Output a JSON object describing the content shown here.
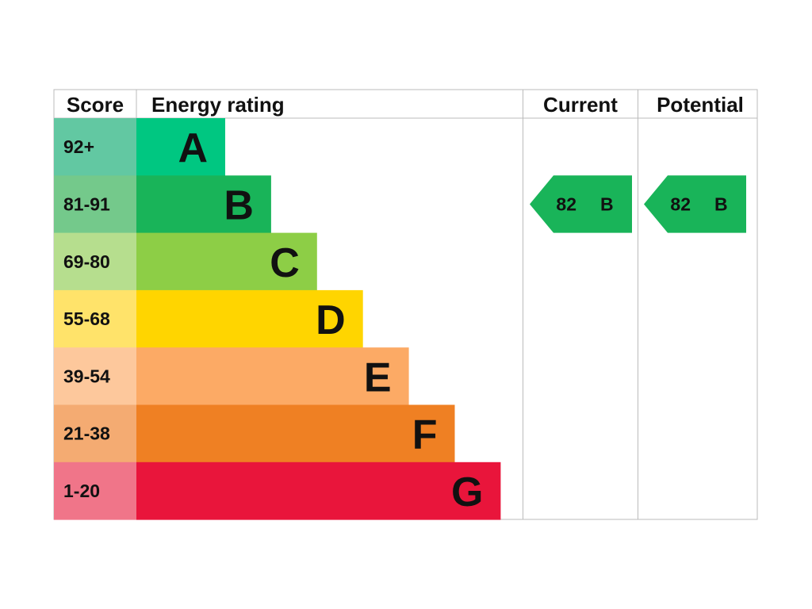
{
  "headers": {
    "score": "Score",
    "rating": "Energy rating",
    "current": "Current",
    "potential": "Potential"
  },
  "bands": [
    {
      "score": "92+",
      "letter": "A",
      "color": "#00c781",
      "score_color": "#62c8a2"
    },
    {
      "score": "81-91",
      "letter": "B",
      "color": "#19b459",
      "score_color": "#74c98b"
    },
    {
      "score": "69-80",
      "letter": "C",
      "color": "#8dce46",
      "score_color": "#b6de8e"
    },
    {
      "score": "55-68",
      "letter": "D",
      "color": "#ffd500",
      "score_color": "#ffe36a"
    },
    {
      "score": "39-54",
      "letter": "E",
      "color": "#fcaa65",
      "score_color": "#fdc89c"
    },
    {
      "score": "21-38",
      "letter": "F",
      "color": "#ef8023",
      "score_color": "#f4ab72"
    },
    {
      "score": "1-20",
      "letter": "G",
      "color": "#e9153b",
      "score_color": "#f07589"
    }
  ],
  "current": {
    "score": 82,
    "band": "B"
  },
  "potential": {
    "score": 82,
    "band": "B"
  }
}
